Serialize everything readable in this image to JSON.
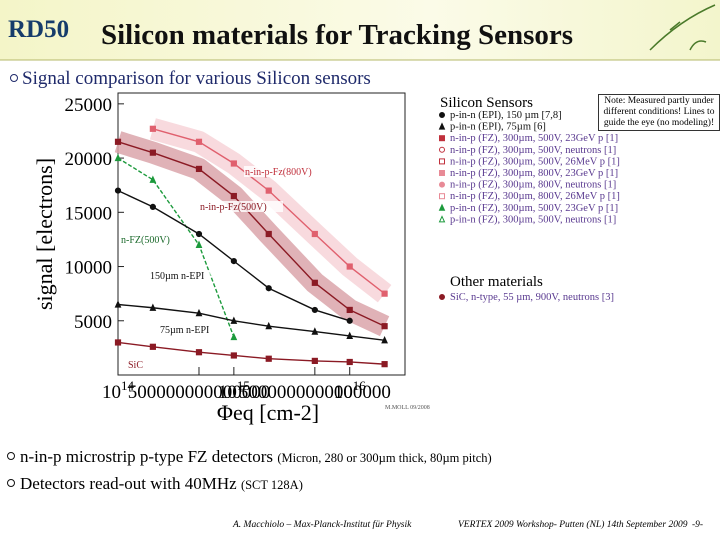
{
  "header": {
    "logo": "RD50",
    "title": "Silicon materials for Tracking Sensors"
  },
  "bullet_top": "Signal comparison for various Silicon sensors",
  "note": "Note: Measured partly under different conditions! Lines to guide the eye (no modeling)!",
  "chart_data": {
    "type": "line",
    "x_label": "Φeq [cm-2]",
    "y_label": "signal [electrons]",
    "x_log": true,
    "xlim": [
      100000000000000.0,
      3e+16
    ],
    "ylim": [
      0,
      26000
    ],
    "xticks": [
      {
        "value": 100000000000000.0,
        "label": "10^14"
      },
      500000000000000.0,
      {
        "value": 1000000000000000.0,
        "label": "10^15"
      },
      5000000000000000.0,
      {
        "value": 1e+16,
        "label": "10^16"
      }
    ],
    "yticks": [
      5000,
      10000,
      15000,
      20000,
      25000
    ],
    "x": [
      100000000000000.0,
      200000000000000.0,
      500000000000000.0,
      1000000000000000.0,
      2000000000000000.0,
      5000000000000000.0,
      1e+16,
      2e+16
    ],
    "series": [
      {
        "name": "n-in-p-Fz(800V)",
        "color": "#e0606e",
        "band": "#f7d3d8",
        "values": [
          null,
          22700,
          21500,
          19500,
          17000,
          13000,
          10000,
          7500
        ]
      },
      {
        "name": "n-in-p-Fz(500V)",
        "color": "#8b1a24",
        "band": "#dba4aa",
        "values": [
          21500,
          20500,
          19000,
          16500,
          13000,
          8500,
          6000,
          4500
        ]
      },
      {
        "name": "n-FZ(500V)",
        "color": "#1c9a3c",
        "dashed": true,
        "values": [
          20000,
          18000,
          12000,
          3500,
          null,
          null,
          null,
          null
        ]
      },
      {
        "name": "150µm n-EPI",
        "color": "#111111",
        "values": [
          17000,
          15500,
          13000,
          10500,
          8000,
          6000,
          5000,
          null
        ]
      },
      {
        "name": "75µm n-EPI",
        "color": "#111111",
        "values": [
          6500,
          6200,
          5700,
          5000,
          4500,
          4000,
          3600,
          3200
        ]
      },
      {
        "name": "SiC",
        "color": "#8b1a24",
        "values": [
          3000,
          2600,
          2100,
          1800,
          1500,
          1300,
          1200,
          1000
        ]
      }
    ],
    "legend_title": "Silicon Sensors",
    "legend": [
      {
        "label": "p-in-n (EPI), 150 µm [7,8]",
        "color": "#111111",
        "marker": "circle"
      },
      {
        "label": "p-in-n (EPI), 75µm [6]",
        "color": "#111111",
        "marker": "triangle"
      },
      {
        "label": "n-in-p (FZ), 300µm, 500V, 23GeV p [1]",
        "color": "#c0303c",
        "marker": "square"
      },
      {
        "label": "n-in-p (FZ), 300µm, 500V, neutrons [1]",
        "color": "#c0303c",
        "marker": "open-circle"
      },
      {
        "label": "n-in-p (FZ), 300µm, 500V, 26MeV p [1]",
        "color": "#c0303c",
        "marker": "open-square"
      },
      {
        "label": "n-in-p (FZ), 300µm, 800V, 23GeV p [1]",
        "color": "#e88a96",
        "marker": "square"
      },
      {
        "label": "n-in-p (FZ), 300µm, 800V, neutrons [1]",
        "color": "#e88a96",
        "marker": "circle"
      },
      {
        "label": "n-in-p (FZ), 300µm, 800V, 26MeV p [1]",
        "color": "#e88a96",
        "marker": "open-square"
      },
      {
        "label": "p-in-n (FZ), 300µm, 500V, 23GeV p [1]",
        "color": "#1c9a3c",
        "marker": "triangle"
      },
      {
        "label": "p-in-n (FZ), 300µm, 500V, neutrons [1]",
        "color": "#1c9a3c",
        "marker": "open-triangle"
      }
    ],
    "other_title": "Other materials",
    "other_legend": [
      {
        "label": "SiC, n-type, 55 µm, 900V, neutrons [3]",
        "color": "#8b1a24",
        "marker": "circle"
      }
    ],
    "credit": "M.MOLL 09/2008"
  },
  "bullets": [
    {
      "text": "n-in-p microstrip p-type FZ detectors",
      "detail": "(Micron, 280 or 300µm thick, 80µm pitch)"
    },
    {
      "text": "Detectors read-out with 40MHz",
      "detail": "(SCT 128A)"
    }
  ],
  "footer": {
    "author": "A. Macchiolo – Max-Planck-Institut für Physik",
    "event": "VERTEX 2009 Workshop- Putten (NL) 14th September 2009",
    "page": "-9-"
  }
}
